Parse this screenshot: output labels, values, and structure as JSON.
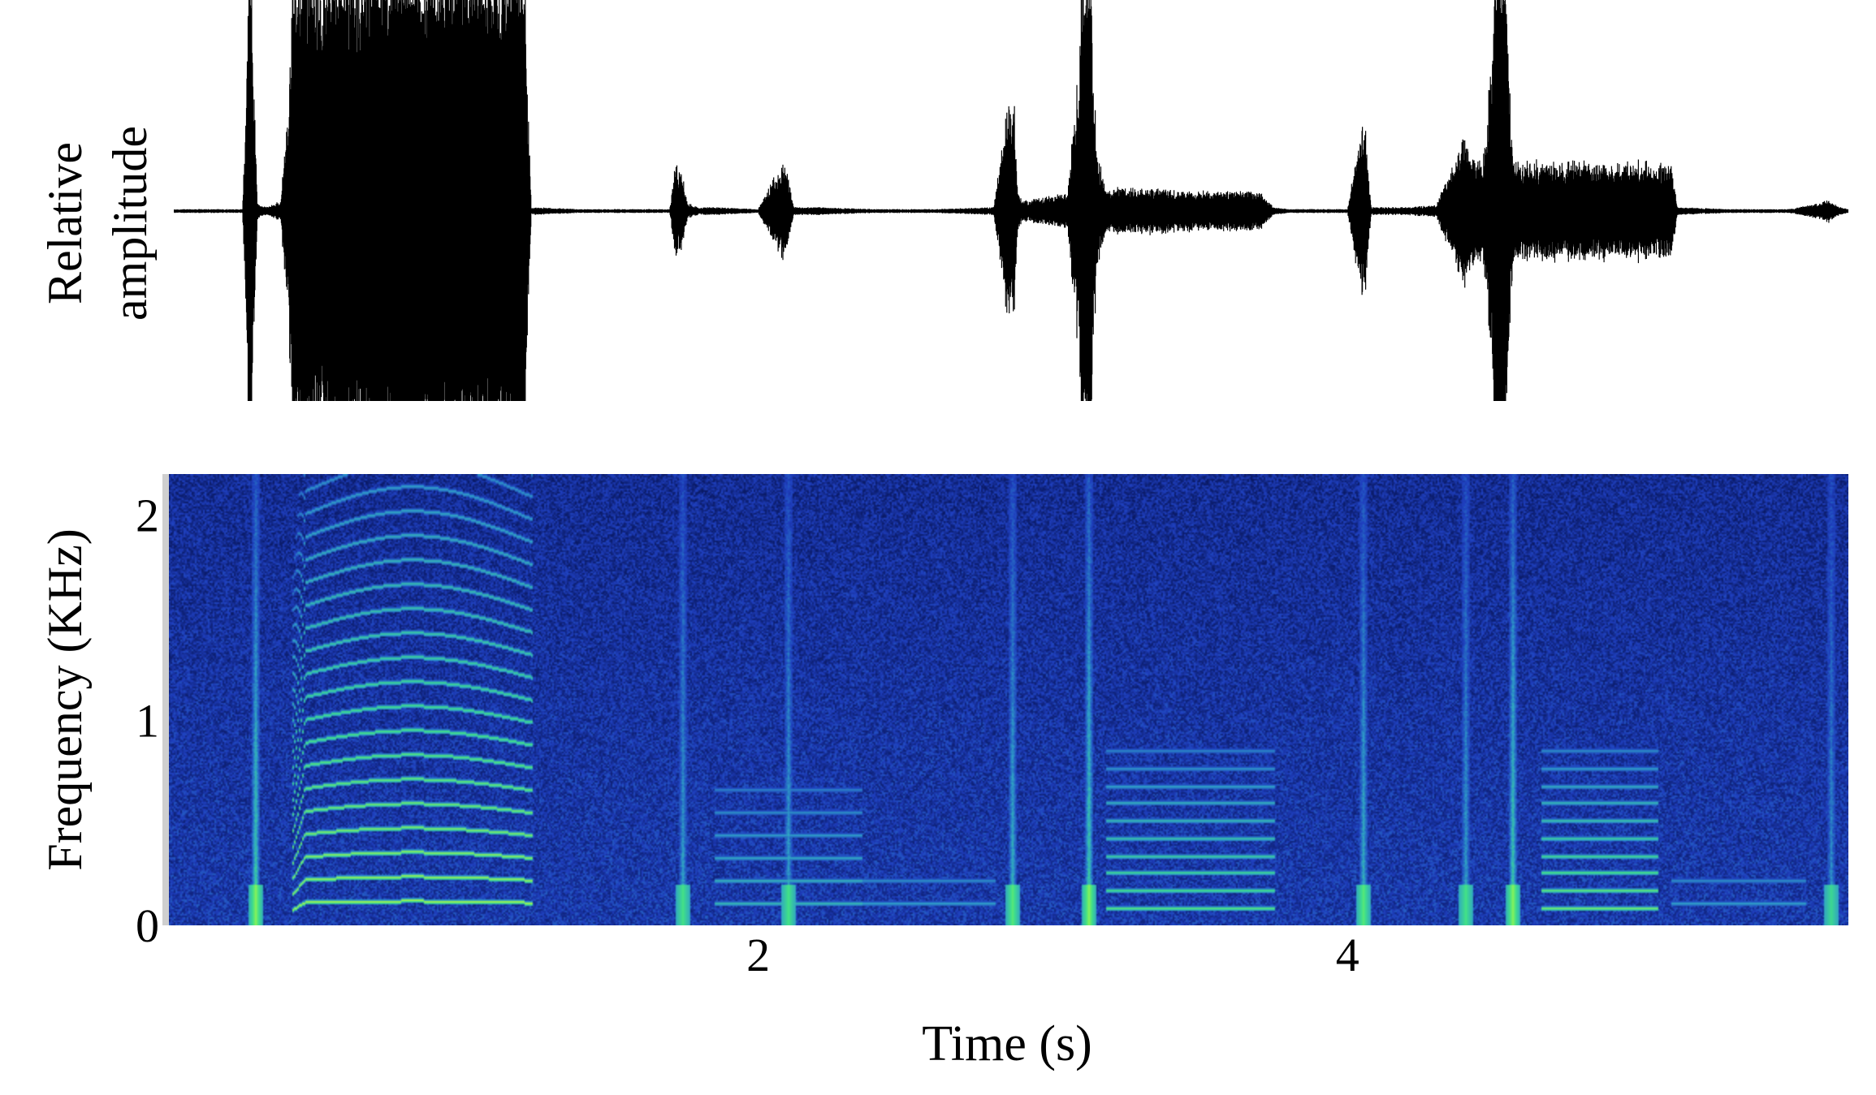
{
  "chart_data": [
    {
      "type": "area",
      "panel": "waveform",
      "title": "",
      "ylabel_lines": [
        "Relative",
        "amplitude"
      ],
      "xlabel": "",
      "ylim": [
        -1,
        1
      ],
      "xlim": [
        0,
        5.7
      ],
      "envelope": {
        "x": [
          0.0,
          0.25,
          0.27,
          0.28,
          0.3,
          0.31,
          0.33,
          0.38,
          0.42,
          0.44,
          1.21,
          1.23,
          1.4,
          1.7,
          1.72,
          1.74,
          1.76,
          1.8,
          1.85,
          2.0,
          2.08,
          2.1,
          2.12,
          2.2,
          2.4,
          2.6,
          2.8,
          2.85,
          2.87,
          2.88,
          2.9,
          3.0,
          3.05,
          3.1,
          3.13,
          3.15,
          3.18,
          3.2,
          3.3,
          3.5,
          3.7,
          3.75,
          3.8,
          4.0,
          4.05,
          4.06,
          4.08,
          4.2,
          4.3,
          4.4,
          4.42,
          4.46,
          4.5,
          4.54,
          4.56,
          4.58,
          4.6,
          4.65,
          5.0,
          5.1,
          5.12,
          5.3,
          5.5,
          5.6,
          5.63,
          5.67,
          5.7
        ],
        "amp": [
          0.01,
          0.01,
          1.0,
          1.0,
          0.05,
          0.03,
          0.02,
          0.05,
          1.0,
          1.0,
          1.0,
          0.02,
          0.01,
          0.01,
          0.25,
          0.2,
          0.04,
          0.02,
          0.02,
          0.01,
          0.25,
          0.2,
          0.02,
          0.02,
          0.01,
          0.01,
          0.02,
          0.6,
          0.6,
          0.1,
          0.05,
          0.08,
          0.1,
          1.0,
          1.0,
          0.3,
          0.1,
          0.12,
          0.12,
          0.1,
          0.1,
          0.02,
          0.01,
          0.01,
          0.45,
          0.45,
          0.02,
          0.02,
          0.03,
          0.4,
          0.3,
          0.25,
          1.0,
          1.0,
          0.3,
          0.28,
          0.25,
          0.25,
          0.25,
          0.25,
          0.02,
          0.01,
          0.01,
          0.04,
          0.06,
          0.02,
          0.01
        ]
      }
    },
    {
      "type": "heatmap",
      "panel": "spectrogram",
      "title": "",
      "xlabel": "Time (s)",
      "ylabel": "Frequency (KHz)",
      "xlim": [
        0,
        5.7
      ],
      "ylim": [
        0,
        2.2
      ],
      "xticks": [
        {
          "value": 2,
          "label": "2"
        },
        {
          "value": 4,
          "label": "4"
        }
      ],
      "yticks": [
        {
          "value": 0,
          "label": "0"
        },
        {
          "value": 1,
          "label": "1"
        },
        {
          "value": 2,
          "label": "2"
        }
      ],
      "colormap": [
        "#000000",
        "#0a1a66",
        "#1f3fbf",
        "#2fa0c8",
        "#3fe08a",
        "#b8ff3a"
      ],
      "events": [
        {
          "type": "click",
          "t": 0.29,
          "strength": 0.9
        },
        {
          "type": "click",
          "t": 1.74,
          "strength": 0.6
        },
        {
          "type": "click",
          "t": 2.1,
          "strength": 0.6
        },
        {
          "type": "click",
          "t": 2.86,
          "strength": 0.7
        },
        {
          "type": "click",
          "t": 3.12,
          "strength": 0.9
        },
        {
          "type": "click",
          "t": 4.05,
          "strength": 0.7
        },
        {
          "type": "click",
          "t": 4.4,
          "strength": 0.6
        },
        {
          "type": "click",
          "t": 4.56,
          "strength": 0.9
        },
        {
          "type": "click",
          "t": 5.64,
          "strength": 0.5
        },
        {
          "type": "tonal",
          "t0": 0.42,
          "t1": 1.23,
          "f0": 0.11,
          "harmonics": 22,
          "strength": 1.0,
          "glideIn": true
        },
        {
          "type": "tonal",
          "t0": 1.85,
          "t1": 2.35,
          "f0": 0.11,
          "harmonics": 6,
          "strength": 0.45
        },
        {
          "type": "tonal",
          "t0": 2.35,
          "t1": 2.8,
          "f0": 0.11,
          "harmonics": 2,
          "strength": 0.3
        },
        {
          "type": "tonal",
          "t0": 3.18,
          "t1": 3.75,
          "f0": 0.085,
          "harmonics": 10,
          "strength": 0.75
        },
        {
          "type": "tonal",
          "t0": 4.66,
          "t1": 5.05,
          "f0": 0.085,
          "harmonics": 10,
          "strength": 0.85
        },
        {
          "type": "tonal",
          "t0": 5.1,
          "t1": 5.55,
          "f0": 0.11,
          "harmonics": 2,
          "strength": 0.3
        }
      ]
    }
  ]
}
